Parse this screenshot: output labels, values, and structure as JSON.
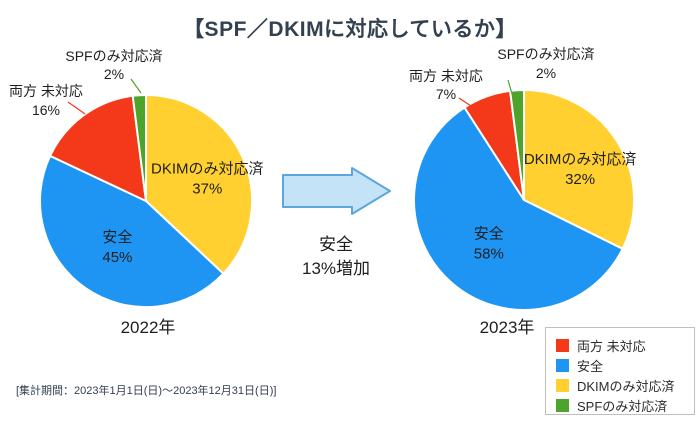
{
  "title": "【SPF／DKIMに対応しているか】",
  "footer": "[集計期間：2023年1月1日(日)～2023年12月31日(日)]",
  "annotation": {
    "line1": "安全",
    "line2": "13%増加"
  },
  "arrow": {
    "fill": "#C5E3F7",
    "stroke": "#5BA7DC"
  },
  "colors": {
    "both_unsupported": "#F4391B",
    "safe": "#1E95F3",
    "dkim_only": "#FFD02F",
    "spf_only": "#4EA32A"
  },
  "legend": {
    "items": [
      {
        "label": "両方 未対応",
        "color": "#F4391B"
      },
      {
        "label": "安全",
        "color": "#1E95F3"
      },
      {
        "label": "DKIMのみ対応済",
        "color": "#FFD02F"
      },
      {
        "label": "SPFのみ対応済",
        "color": "#4EA32A"
      }
    ]
  },
  "chart_data": [
    {
      "type": "pie",
      "title": "2022年",
      "start_angle_deg": 0,
      "direction": "clockwise",
      "slices": [
        {
          "label": "DKIMのみ対応済",
          "value": 37,
          "color": "#FFD02F",
          "label_position": "inside"
        },
        {
          "label": "安全",
          "value": 45,
          "color": "#1E95F3",
          "label_position": "inside"
        },
        {
          "label": "両方 未対応",
          "value": 16,
          "color": "#F4391B",
          "label_position": "outside"
        },
        {
          "label": "SPFのみ対応済",
          "value": 2,
          "color": "#4EA32A",
          "label_position": "outside"
        }
      ]
    },
    {
      "type": "pie",
      "title": "2023年",
      "start_angle_deg": 0,
      "direction": "clockwise",
      "slices": [
        {
          "label": "DKIMのみ対応済",
          "value": 32,
          "color": "#FFD02F",
          "label_position": "inside"
        },
        {
          "label": "安全",
          "value": 58,
          "color": "#1E95F3",
          "label_position": "inside"
        },
        {
          "label": "両方 未対応",
          "value": 7,
          "color": "#F4391B",
          "label_position": "outside"
        },
        {
          "label": "SPFのみ対応済",
          "value": 2,
          "color": "#4EA32A",
          "label_position": "outside"
        }
      ]
    }
  ]
}
